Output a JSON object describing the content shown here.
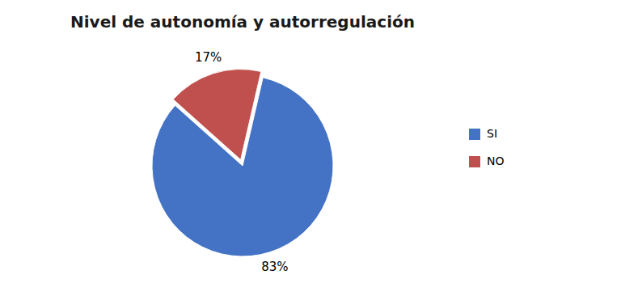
{
  "chart_data": {
    "type": "pie",
    "title": "Nivel de autonomía y autorregulación",
    "categories": [
      "SI",
      "NO"
    ],
    "values": [
      83,
      17
    ],
    "value_labels": [
      "83%",
      "17%"
    ],
    "colors": [
      "#4472C4",
      "#C0504D"
    ],
    "data_labels": true,
    "legend": "right"
  }
}
